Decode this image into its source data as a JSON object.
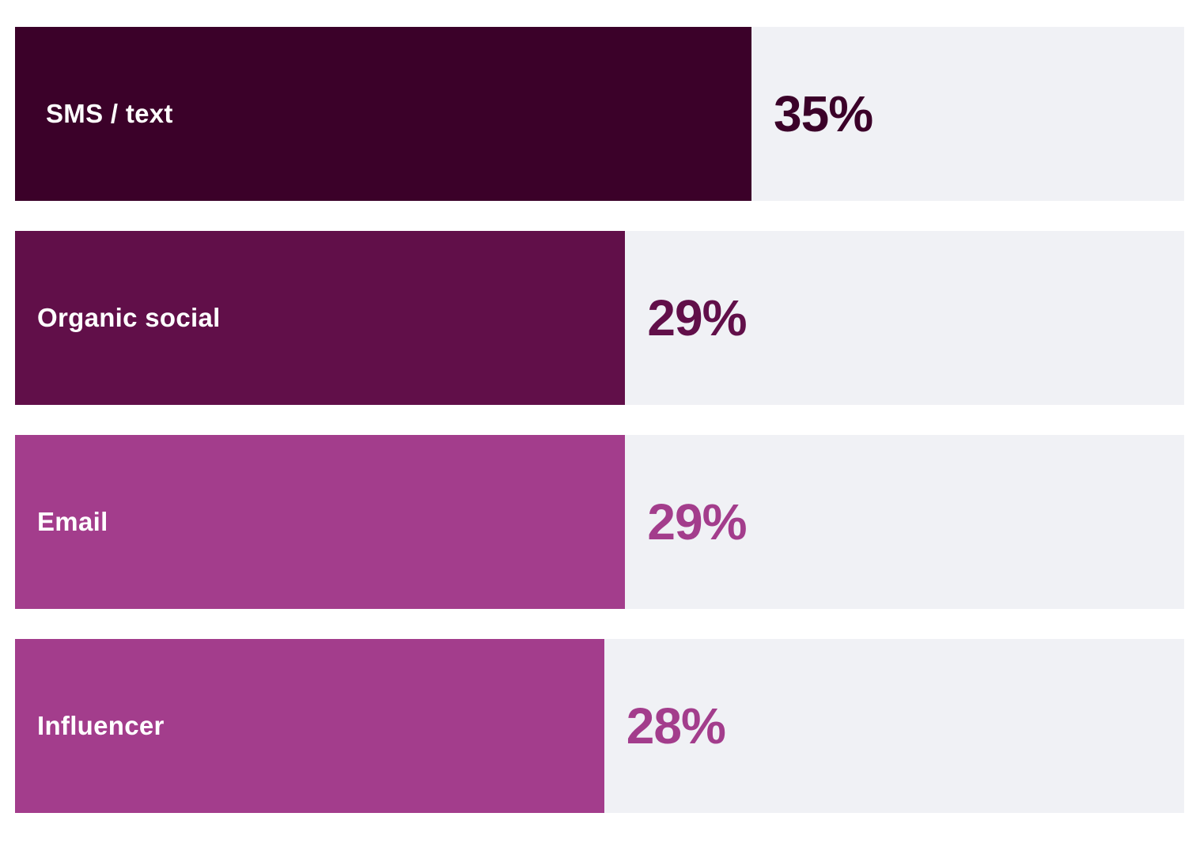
{
  "chart_data": {
    "type": "bar",
    "orientation": "horizontal",
    "categories": [
      "SMS / text",
      "Organic social",
      "Email",
      "Influencer"
    ],
    "values": [
      35,
      29,
      29,
      28
    ],
    "value_labels": [
      "35%",
      "29%",
      "29%",
      "28%"
    ],
    "bar_colors": [
      "#3b0129",
      "#610f49",
      "#a33d8c",
      "#a33d8c"
    ],
    "value_colors": [
      "#3b0129",
      "#610f49",
      "#a33d8c",
      "#a33d8c"
    ],
    "track_color": "#f0f1f5",
    "title": "",
    "xlabel": "",
    "ylabel": "",
    "grid": false,
    "legend": "none"
  }
}
